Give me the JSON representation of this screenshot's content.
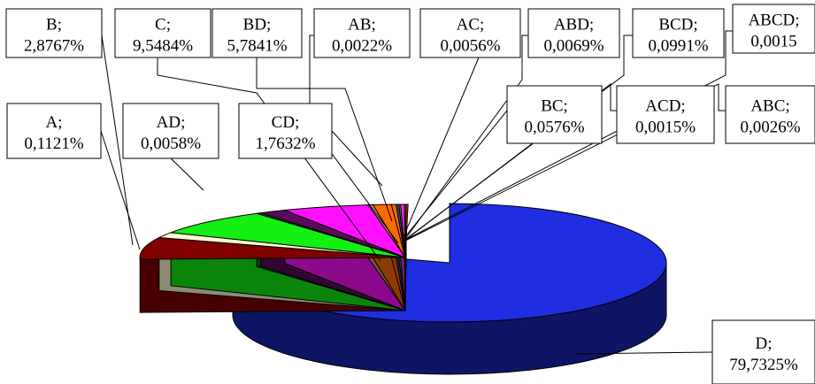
{
  "chart_data": {
    "type": "pie",
    "style": "3d-exploded",
    "legend": "none",
    "slices": [
      {
        "name": "D",
        "value_label": "79,7325%",
        "value": 79.7325,
        "color": "#1f2ee0"
      },
      {
        "name": "A",
        "value_label": "0,1121%",
        "value": 0.1121,
        "color": "#800000"
      },
      {
        "name": "B",
        "value_label": "2,8767%",
        "value": 2.8767,
        "color": "#fffcd2"
      },
      {
        "name": "C",
        "value_label": "9,5484%",
        "value": 9.5484,
        "color": "#14f014"
      },
      {
        "name": "AD",
        "value_label": "0,0058%",
        "value": 0.0058,
        "color": "#2f5f2f"
      },
      {
        "name": "CD",
        "value_label": "1,7632%",
        "value": 1.7632,
        "color": "#5a0a5a"
      },
      {
        "name": "BD",
        "value_label": "5,7841%",
        "value": 5.7841,
        "color": "#ff10ff"
      },
      {
        "name": "AB",
        "value_label": "0,0022%",
        "value": 0.0022,
        "color": "#e0a070"
      },
      {
        "name": "AC",
        "value_label": "0,0056%",
        "value": 0.0056,
        "color": "#ff6a00"
      },
      {
        "name": "BC",
        "value_label": "0,0576%",
        "value": 0.0576,
        "color": "#ff6a00"
      },
      {
        "name": "ABD",
        "value_label": "0,0069%",
        "value": 0.0069,
        "color": "#4040a0"
      },
      {
        "name": "ACD",
        "value_label": "0,0015%",
        "value": 0.0015,
        "color": "#40a040"
      },
      {
        "name": "BCD",
        "value_label": "0,0991%",
        "value": 0.0991,
        "color": "#ff30ff"
      },
      {
        "name": "ABC",
        "value_label": "0,0026%",
        "value": 0.0026,
        "color": "#a04040"
      },
      {
        "name": "ABCD",
        "value_label": "0,0015",
        "value": 0.0015,
        "color": "#ff2020"
      }
    ]
  }
}
